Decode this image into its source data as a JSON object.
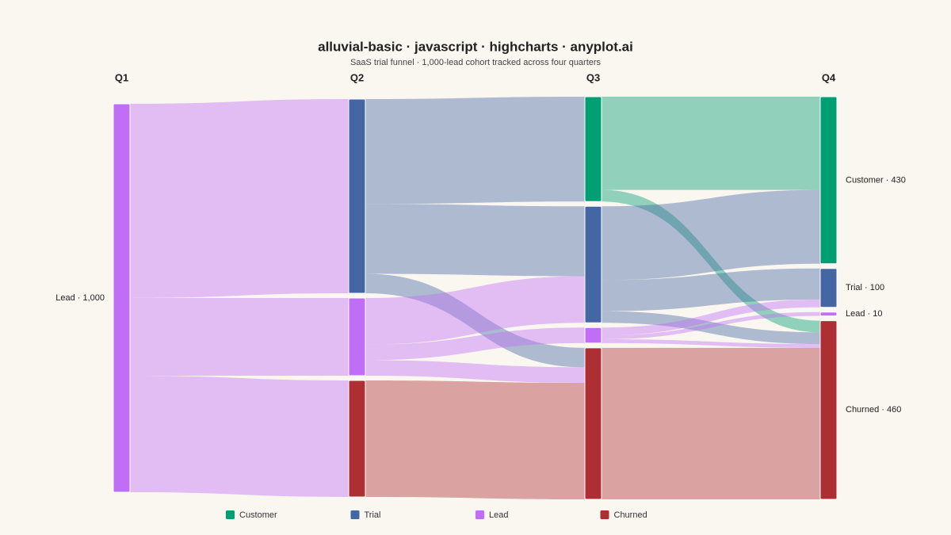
{
  "chart_data": {
    "type": "sankey",
    "title": "alluvial-basic · javascript · highcharts · anyplot.ai",
    "subtitle": "SaaS trial funnel · 1,000-lead cohort tracked across four quarters",
    "columns": [
      "Q1",
      "Q2",
      "Q3",
      "Q4"
    ],
    "categories": [
      {
        "name": "Customer",
        "color": "#009e73"
      },
      {
        "name": "Trial",
        "color": "#4466a3"
      },
      {
        "name": "Lead",
        "color": "#c06ef5"
      },
      {
        "name": "Churned",
        "color": "#ae2f33"
      }
    ],
    "nodes": [
      {
        "column": 0,
        "category": 2,
        "value": 1000,
        "label": "Lead · 1,000"
      },
      {
        "column": 1,
        "category": 1,
        "value": 500
      },
      {
        "column": 1,
        "category": 2,
        "value": 200
      },
      {
        "column": 1,
        "category": 3,
        "value": 300
      },
      {
        "column": 2,
        "category": 0,
        "value": 270
      },
      {
        "column": 2,
        "category": 1,
        "value": 300
      },
      {
        "column": 2,
        "category": 2,
        "value": 40
      },
      {
        "column": 2,
        "category": 3,
        "value": 390
      },
      {
        "column": 3,
        "category": 0,
        "value": 430,
        "label": "Customer · 430"
      },
      {
        "column": 3,
        "category": 1,
        "value": 100,
        "label": "Trial · 100"
      },
      {
        "column": 3,
        "category": 2,
        "value": 10,
        "label": "Lead · 10"
      },
      {
        "column": 3,
        "category": 3,
        "value": 460,
        "label": "Churned · 460"
      }
    ],
    "links": [
      {
        "source": 0,
        "target": 1,
        "value": 500
      },
      {
        "source": 0,
        "target": 2,
        "value": 200
      },
      {
        "source": 0,
        "target": 3,
        "value": 300
      },
      {
        "source": 1,
        "target": 4,
        "value": 270
      },
      {
        "source": 1,
        "target": 5,
        "value": 180
      },
      {
        "source": 1,
        "target": 7,
        "value": 50
      },
      {
        "source": 2,
        "target": 5,
        "value": 120
      },
      {
        "source": 2,
        "target": 6,
        "value": 40
      },
      {
        "source": 2,
        "target": 7,
        "value": 40
      },
      {
        "source": 3,
        "target": 7,
        "value": 300
      },
      {
        "source": 4,
        "target": 8,
        "value": 240
      },
      {
        "source": 4,
        "target": 11,
        "value": 30
      },
      {
        "source": 5,
        "target": 8,
        "value": 190
      },
      {
        "source": 5,
        "target": 9,
        "value": 80
      },
      {
        "source": 5,
        "target": 11,
        "value": 30
      },
      {
        "source": 6,
        "target": 9,
        "value": 20
      },
      {
        "source": 6,
        "target": 10,
        "value": 10
      },
      {
        "source": 6,
        "target": 11,
        "value": 10
      },
      {
        "source": 7,
        "target": 11,
        "value": 390
      }
    ]
  }
}
